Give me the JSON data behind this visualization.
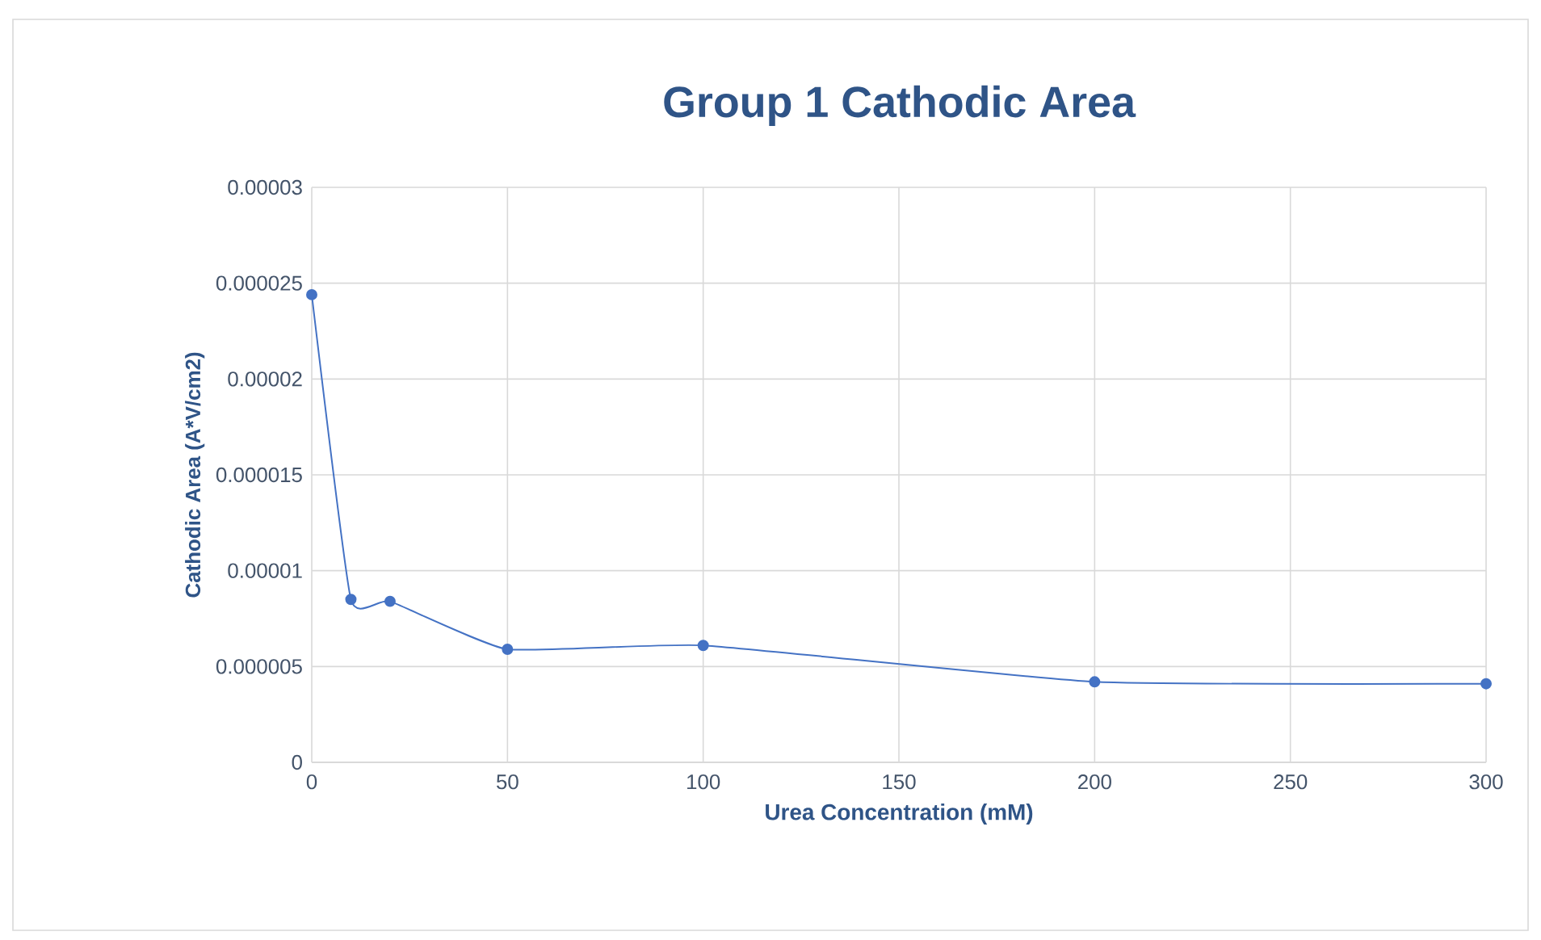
{
  "chart_data": {
    "type": "line",
    "title": "Group 1 Cathodic Area",
    "xlabel": "Urea Concentration  (mM)",
    "ylabel": "Cathodic Area  (A*V/cm2)",
    "x": [
      0,
      10,
      20,
      50,
      100,
      200,
      300
    ],
    "series": [
      {
        "color": "#4472c4",
        "values": [
          2.44e-05,
          8.5e-06,
          8.4e-06,
          5.9e-06,
          6.1e-06,
          4.2e-06,
          4.1e-06
        ]
      }
    ],
    "xlim": [
      0,
      300
    ],
    "xticks": [
      0,
      50,
      100,
      150,
      200,
      250,
      300
    ],
    "ylim": [
      0,
      3e-05
    ],
    "yticks": [
      {
        "value": 0,
        "label": "0"
      },
      {
        "value": 5e-06,
        "label": "0.000005"
      },
      {
        "value": 1e-05,
        "label": "0.00001"
      },
      {
        "value": 1.5e-05,
        "label": "0.000015"
      },
      {
        "value": 2e-05,
        "label": "0.00002"
      },
      {
        "value": 2.5e-05,
        "label": "0.000025"
      },
      {
        "value": 3e-05,
        "label": "0.00003"
      }
    ],
    "grid": true,
    "marker": "circle",
    "line_style": "solid"
  }
}
